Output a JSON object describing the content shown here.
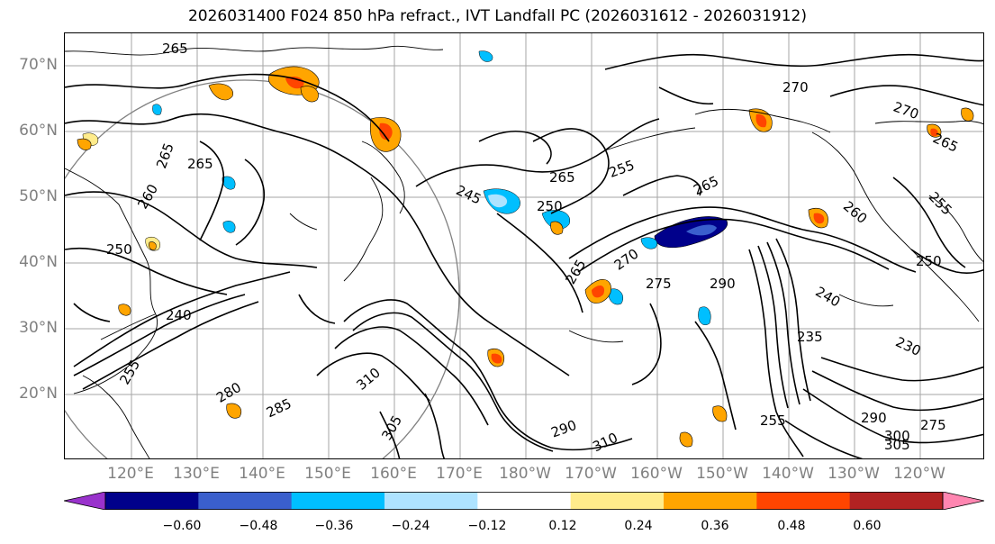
{
  "title": "2026031400 F024 850 hPa refract., IVT Landfall PC (2026031612 - 2026031912)",
  "map": {
    "latitude_labels": [
      "70°N",
      "60°N",
      "50°N",
      "40°N",
      "30°N",
      "20°N"
    ],
    "longitude_labels": [
      "120°E",
      "130°E",
      "140°E",
      "150°E",
      "160°E",
      "170°E",
      "180°W",
      "170°W",
      "160°W",
      "150°W",
      "140°W",
      "130°W",
      "120°W"
    ],
    "contour_labels": [
      "265",
      "265",
      "265",
      "260",
      "250",
      "240",
      "265",
      "245",
      "250",
      "255",
      "265",
      "265",
      "270",
      "275",
      "290",
      "260",
      "255",
      "250",
      "240",
      "235",
      "230",
      "270",
      "270",
      "265",
      "280",
      "285",
      "310",
      "305",
      "290",
      "310",
      "255",
      "290",
      "300",
      "305",
      "275",
      "255"
    ],
    "colors": {
      "contour": "#000000",
      "coast": "#000000",
      "grid": "#808080",
      "circle": "#808080"
    }
  },
  "colorbar": {
    "tick_labels": [
      "−0.60",
      "−0.48",
      "−0.36",
      "−0.24",
      "−0.12",
      "0.12",
      "0.24",
      "0.36",
      "0.48",
      "0.60"
    ],
    "colors": [
      "#9932cc",
      "#00008b",
      "#3a5fcd",
      "#00bfff",
      "#aee3ff",
      "#ffffff",
      "#ffec8b",
      "#ffa500",
      "#ff4500",
      "#b22222",
      "#ff86b1"
    ]
  }
}
